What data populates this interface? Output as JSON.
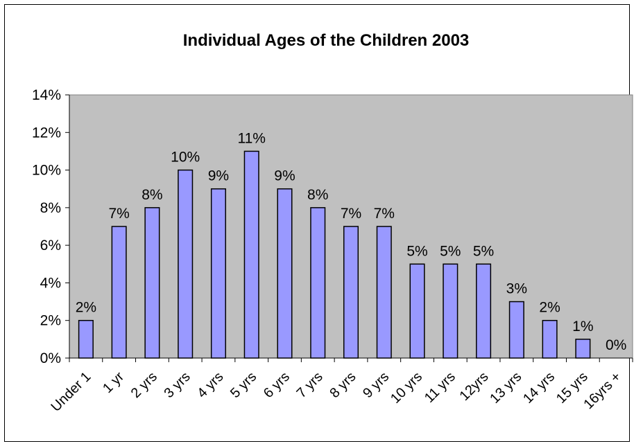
{
  "chart_data": {
    "type": "bar",
    "title": "Individual Ages of the Children 2003",
    "xlabel": "",
    "ylabel": "",
    "categories": [
      "Under 1",
      "1 yr",
      "2 yrs",
      "3 yrs",
      "4 yrs",
      "5 yrs",
      "6 yrs",
      "7 yrs",
      "8 yrs",
      "9 yrs",
      "10 yrs",
      "11 yrs",
      "12yrs",
      "13 yrs",
      "14 yrs",
      "15 yrs",
      "16yrs +"
    ],
    "values": [
      2,
      7,
      8,
      10,
      9,
      11,
      9,
      8,
      7,
      7,
      5,
      5,
      5,
      3,
      2,
      1,
      0
    ],
    "data_labels": [
      "2%",
      "7%",
      "8%",
      "10%",
      "9%",
      "11%",
      "9%",
      "8%",
      "7%",
      "7%",
      "5%",
      "5%",
      "5%",
      "3%",
      "2%",
      "1%",
      "0%"
    ],
    "y_ticks": [
      "0%",
      "2%",
      "4%",
      "6%",
      "8%",
      "10%",
      "12%",
      "14%"
    ],
    "ylim": [
      0,
      14
    ],
    "grid": false,
    "legend": "none",
    "colors": {
      "plot_background": "#c0c0c0",
      "bar_fill": "#9999ff",
      "bar_stroke": "#000000"
    }
  }
}
